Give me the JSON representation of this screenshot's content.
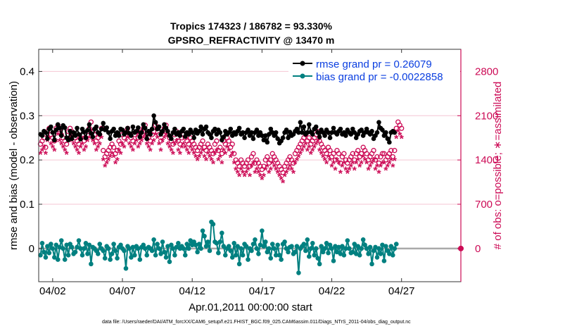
{
  "chart_data": {
    "type": "line",
    "title_line1": "Tropics 174323 / 186782 = 93.330%",
    "title_line2": "GPSRO_REFRACTIVITY @ 13470 m",
    "xlabel": "Apr.01,2011 00:00:00 start",
    "ylabel": "rmse and bias (model - observation)",
    "y2label": "# of obs: o=possible; ∗=assimilated",
    "footer": "data file: /Users/raeder/DAI/ATM_forcXX/CAM6_setup/f.e21.FHIST_BGC.f09_025.CAM6assim.011/Diags_NTrS_2011-04/obs_diag_output.nc",
    "x_ticks": [
      "04/02",
      "04/07",
      "04/12",
      "04/17",
      "04/22",
      "04/27"
    ],
    "x_tick_days": [
      2,
      7,
      12,
      17,
      22,
      27
    ],
    "x_range_days": [
      1,
      31.25
    ],
    "y_ticks": [
      "0",
      "0.1",
      "0.2",
      "0.3",
      "0.4"
    ],
    "y_tick_values": [
      0,
      0.1,
      0.2,
      0.3,
      0.4
    ],
    "ylim": [
      -0.075,
      0.45
    ],
    "y2_ticks": [
      "0",
      "700",
      "1400",
      "2100",
      "2800"
    ],
    "y2_tick_values": [
      0,
      700,
      1400,
      2100,
      2800
    ],
    "y2lim": [
      -525,
      3150
    ],
    "legend": [
      {
        "label": "rmse grand pr = 0.26079",
        "color": "#000000",
        "marker": "circle"
      },
      {
        "label": "bias grand pr = -0.0022858",
        "color": "#008080",
        "marker": "circle"
      }
    ],
    "colors": {
      "rmse": "#000000",
      "bias": "#008080",
      "obs": "#cc0a55",
      "zero_line": "#aaaaaa",
      "grid": "#f4c6d3"
    },
    "rmse_start_day": 1.125,
    "bias_start_day": 1.125,
    "obs_start_day": 1.125,
    "step_days": 0.125,
    "rmse": [
      0.258,
      0.255,
      0.265,
      0.262,
      0.248,
      0.27,
      0.275,
      0.262,
      0.245,
      0.268,
      0.28,
      0.272,
      0.255,
      0.278,
      0.273,
      0.25,
      0.245,
      0.265,
      0.248,
      0.262,
      0.255,
      0.272,
      0.258,
      0.247,
      0.27,
      0.263,
      0.25,
      0.267,
      0.28,
      0.26,
      0.252,
      0.27,
      0.275,
      0.262,
      0.258,
      0.27,
      0.283,
      0.268,
      0.273,
      0.262,
      0.248,
      0.265,
      0.27,
      0.255,
      0.262,
      0.255,
      0.27,
      0.268,
      0.258,
      0.262,
      0.272,
      0.26,
      0.255,
      0.275,
      0.262,
      0.265,
      0.273,
      0.252,
      0.262,
      0.28,
      0.272,
      0.248,
      0.265,
      0.258,
      0.27,
      0.3,
      0.285,
      0.27,
      0.275,
      0.258,
      0.265,
      0.28,
      0.272,
      0.265,
      0.255,
      0.248,
      0.262,
      0.27,
      0.258,
      0.262,
      0.255,
      0.265,
      0.27,
      0.253,
      0.262,
      0.258,
      0.268,
      0.262,
      0.25,
      0.268,
      0.26,
      0.265,
      0.275,
      0.258,
      0.27,
      0.275,
      0.262,
      0.258,
      0.25,
      0.265,
      0.27,
      0.258,
      0.268,
      0.262,
      0.245,
      0.252,
      0.265,
      0.258,
      0.262,
      0.27,
      0.255,
      0.262,
      0.258,
      0.265,
      0.272,
      0.258,
      0.262,
      0.25,
      0.262,
      0.268,
      0.255,
      0.262,
      0.248,
      0.262,
      0.268,
      0.255,
      0.262,
      0.255,
      0.245,
      0.255,
      0.24,
      0.258,
      0.27,
      0.262,
      0.255,
      0.262,
      0.248,
      0.238,
      0.243,
      0.25,
      0.262,
      0.268,
      0.25,
      0.263,
      0.255,
      0.258,
      0.265,
      0.27,
      0.262,
      0.285,
      0.262,
      0.275,
      0.258,
      0.262,
      0.28,
      0.263,
      0.258,
      0.27,
      0.275,
      0.262,
      0.252,
      0.268,
      0.262,
      0.255,
      0.268,
      0.262,
      0.25,
      0.262,
      0.272,
      0.262,
      0.258,
      0.265,
      0.27,
      0.258,
      0.262,
      0.255,
      0.268,
      0.262,
      0.258,
      0.27,
      0.262,
      0.25,
      0.258,
      0.265,
      0.268,
      0.255,
      0.262,
      0.27,
      0.262,
      0.258,
      0.265,
      0.248,
      0.255,
      0.262,
      0.285,
      0.272,
      0.268,
      0.255,
      0.262,
      0.248,
      0.24,
      0.262,
      0.265,
      0.262
    ],
    "bias": [
      -0.015,
      0.012,
      -0.008,
      -0.02,
      0.005,
      -0.01,
      0.01,
      0.0,
      -0.02,
      0.008,
      -0.025,
      0.003,
      0.018,
      0.0,
      -0.025,
      0.008,
      -0.015,
      0.01,
      0.003,
      -0.012,
      -0.008,
      0.003,
      0.018,
      0.0,
      -0.015,
      0.0,
      0.012,
      -0.012,
      0.008,
      -0.035,
      0.003,
      0.0,
      -0.005,
      -0.012,
      0.01,
      0.0,
      -0.005,
      -0.022,
      0.005,
      0.0,
      -0.025,
      -0.012,
      0.01,
      -0.005,
      -0.022,
      0.003,
      0.008,
      0.0,
      -0.005,
      -0.045,
      0.005,
      0.0,
      -0.02,
      0.003,
      -0.015,
      0.005,
      0.0,
      -0.025,
      0.003,
      0.008,
      0.0,
      -0.015,
      0.003,
      0.0,
      -0.005,
      0.02,
      -0.015,
      0.01,
      0.0,
      -0.012,
      0.015,
      -0.008,
      -0.02,
      0.005,
      -0.03,
      0.008,
      0.0,
      -0.015,
      0.003,
      0.012,
      0.0,
      0.005,
      0.0,
      -0.015,
      0.01,
      0.0,
      0.018,
      0.008,
      0.015,
      0.008,
      -0.008,
      0.01,
      0.0,
      0.04,
      0.028,
      0.005,
      0.015,
      -0.005,
      0.06,
      0.055,
      0.015,
      0.012,
      -0.01,
      0.015,
      0.035,
      0.005,
      -0.015,
      0.0,
      0.005,
      -0.005,
      -0.02,
      0.012,
      -0.015,
      0.005,
      -0.035,
      0.0,
      -0.015,
      0.01,
      0.005,
      -0.025,
      0.0,
      -0.005,
      0.01,
      0.02,
      0.0,
      -0.012,
      0.008,
      0.04,
      0.005,
      0.015,
      -0.008,
      0.0,
      -0.022,
      0.01,
      0.0,
      -0.015,
      0.008,
      -0.015,
      -0.025,
      0.01,
      0.015,
      0.0,
      -0.008,
      0.003,
      0.005,
      -0.012,
      -0.008,
      0.005,
      -0.055,
      0.0,
      0.005,
      0.01,
      -0.005,
      0.02,
      -0.018,
      0.0,
      0.012,
      -0.015,
      0.0,
      -0.022,
      -0.035,
      0.005,
      -0.008,
      0.0,
      0.012,
      -0.01,
      0.008,
      0.0,
      -0.028,
      0.005,
      -0.008,
      0.003,
      -0.012,
      0.005,
      -0.015,
      0.0,
      0.018,
      0.0,
      -0.01,
      -0.008,
      0.01,
      -0.012,
      0.005,
      -0.015,
      0.0,
      0.02,
      0.008,
      0.0,
      -0.012,
      0.003,
      -0.035,
      -0.005,
      0.003,
      -0.02,
      0.0,
      -0.012,
      0.008,
      -0.028,
      0.005,
      -0.005,
      -0.012,
      0.005,
      -0.015,
      0.0,
      0.01
    ],
    "obs_possible": [
      1650,
      1700,
      1750,
      1600,
      1850,
      1900,
      1800,
      1750,
      1700,
      1900,
      1950,
      1880,
      1800,
      1750,
      1700,
      1650,
      1850,
      1900,
      1850,
      1800,
      1750,
      1700,
      1650,
      1750,
      1800,
      1700,
      1750,
      1850,
      1900,
      2000,
      1850,
      1800,
      1700,
      1750,
      1800,
      1900,
      1550,
      1450,
      1500,
      1550,
      1600,
      1650,
      1600,
      1500,
      1550,
      1700,
      1650,
      1800,
      1750,
      1850,
      1900,
      1800,
      1750,
      1700,
      1800,
      1850,
      1750,
      1800,
      1850,
      1900,
      1950,
      1800,
      1750,
      1700,
      1800,
      1850,
      1950,
      1900,
      1800,
      1700,
      1850,
      1900,
      1950,
      1800,
      1750,
      1700,
      1650,
      1800,
      1850,
      1700,
      1650,
      1750,
      1800,
      1750,
      1700,
      1650,
      1750,
      1700,
      1650,
      1600,
      1550,
      1600,
      1650,
      1700,
      1600,
      1550,
      1650,
      1600,
      1550,
      1500,
      1650,
      1700,
      1550,
      1600,
      1500,
      1700,
      1650,
      1750,
      1700,
      1600,
      1650,
      1500,
      1400,
      1350,
      1300,
      1400,
      1350,
      1300,
      1350,
      1400,
      1300,
      1450,
      1500,
      1350,
      1400,
      1350,
      1300,
      1250,
      1300,
      1400,
      1450,
      1350,
      1400,
      1500,
      1450,
      1400,
      1350,
      1300,
      1250,
      1200,
      1300,
      1350,
      1400,
      1450,
      1400,
      1350,
      1500,
      1550,
      1600,
      1650,
      1700,
      1750,
      1800,
      1700,
      1750,
      1650,
      1700,
      1750,
      1800,
      1850,
      1700,
      1650,
      1600,
      1550,
      1500,
      1600,
      1550,
      1450,
      1500,
      1400,
      1550,
      1500,
      1350,
      1450,
      1500,
      1400,
      1350,
      1400,
      1450,
      1500,
      1400,
      1500,
      1550,
      1450,
      1500,
      1600,
      1550,
      1500,
      1400,
      1450,
      1500,
      1550,
      1400,
      1450,
      1350,
      1450,
      1500,
      1500,
      1400,
      1450,
      1500,
      1550,
      1450,
      1550,
      1900,
      2000,
      1950,
      1900
    ],
    "obs_assimilated": [
      1500,
      1550,
      1600,
      1500,
      1700,
      1750,
      1650,
      1600,
      1550,
      1700,
      1800,
      1700,
      1650,
      1600,
      1550,
      1500,
      1700,
      1750,
      1700,
      1650,
      1600,
      1550,
      1500,
      1600,
      1650,
      1550,
      1600,
      1700,
      1750,
      1850,
      1700,
      1650,
      1550,
      1600,
      1650,
      1750,
      1400,
      1300,
      1350,
      1400,
      1450,
      1500,
      1450,
      1350,
      1400,
      1550,
      1500,
      1650,
      1600,
      1700,
      1750,
      1650,
      1600,
      1550,
      1650,
      1700,
      1600,
      1650,
      1700,
      1750,
      1800,
      1650,
      1600,
      1550,
      1650,
      1700,
      1800,
      1750,
      1650,
      1550,
      1700,
      1750,
      1800,
      1650,
      1600,
      1550,
      1500,
      1650,
      1700,
      1550,
      1500,
      1600,
      1650,
      1600,
      1550,
      1500,
      1600,
      1550,
      1500,
      1450,
      1400,
      1450,
      1500,
      1550,
      1450,
      1400,
      1500,
      1450,
      1400,
      1350,
      1500,
      1550,
      1400,
      1450,
      1350,
      1550,
      1500,
      1600,
      1550,
      1450,
      1500,
      1350,
      1250,
      1200,
      1150,
      1250,
      1200,
      1150,
      1200,
      1250,
      1150,
      1300,
      1350,
      1200,
      1250,
      1200,
      1150,
      1100,
      1150,
      1250,
      1300,
      1200,
      1250,
      1350,
      1300,
      1250,
      1200,
      1150,
      1100,
      1050,
      1150,
      1200,
      1250,
      1300,
      1250,
      1200,
      1350,
      1400,
      1450,
      1500,
      1550,
      1600,
      1650,
      1550,
      1600,
      1500,
      1550,
      1600,
      1650,
      1700,
      1550,
      1500,
      1450,
      1400,
      1350,
      1450,
      1400,
      1300,
      1350,
      1250,
      1400,
      1350,
      1200,
      1300,
      1350,
      1250,
      1200,
      1250,
      1300,
      1350,
      1250,
      1350,
      1400,
      1300,
      1350,
      1450,
      1400,
      1350,
      1250,
      1300,
      1350,
      1400,
      1250,
      1300,
      1200,
      1300,
      1350,
      1350,
      1250,
      1300,
      1350,
      1400,
      1300,
      1400,
      1750,
      1850,
      1800,
      1750
    ]
  }
}
